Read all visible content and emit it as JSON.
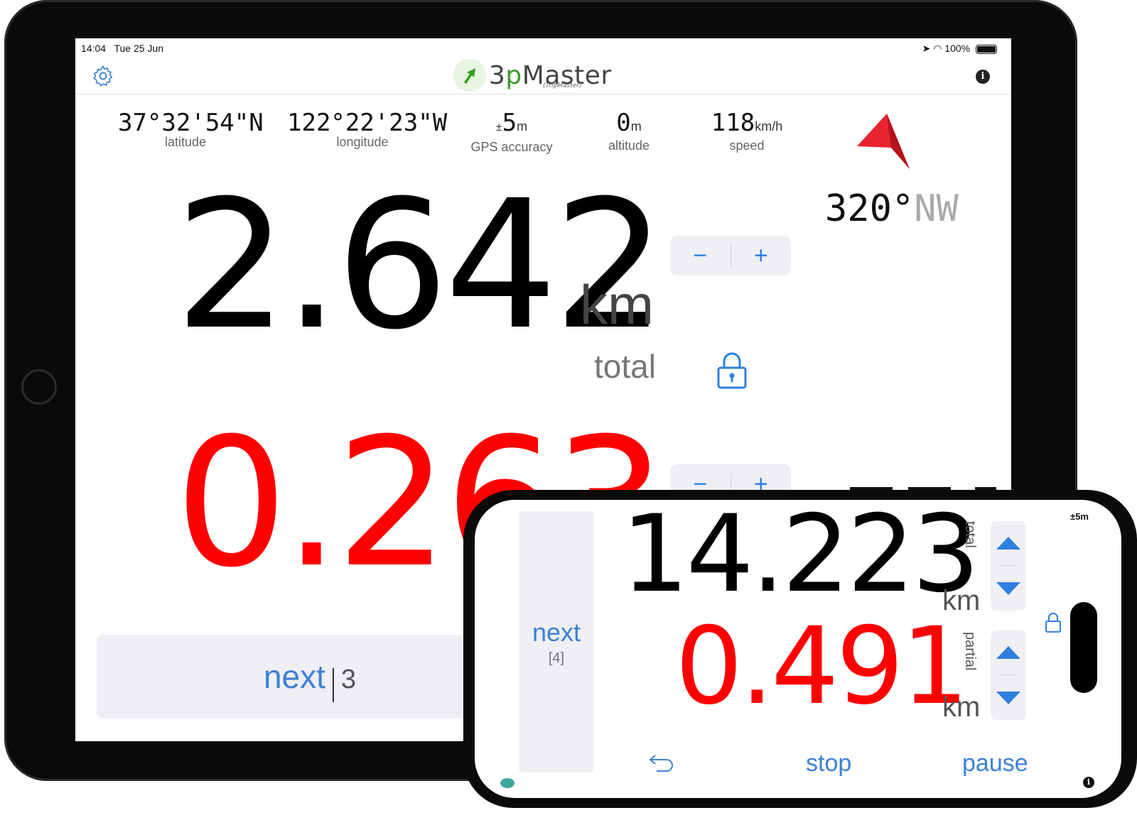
{
  "ipad": {
    "status": {
      "time": "14:04",
      "date": "Tue 25 Jun",
      "battery": "100%"
    },
    "app": {
      "name_prefix": "3",
      "name_p": "p",
      "name_suffix": "Master",
      "subtitle": "(TripMaster)"
    },
    "info_label": "i",
    "stats": {
      "latitude": {
        "value": "37°32'54\"N",
        "label": "latitude"
      },
      "longitude": {
        "value": "122°22'23\"W",
        "label": "longitude"
      },
      "gps": {
        "prefix": "±",
        "value": "5",
        "unit": "m",
        "label": "GPS accuracy"
      },
      "altitude": {
        "value": "0",
        "unit": "m",
        "label": "altitude"
      },
      "speed": {
        "value": "118",
        "unit": "km/h",
        "label": "speed"
      }
    },
    "heading": {
      "degrees": "320°",
      "direction": "NW"
    },
    "total": {
      "value": "2.642",
      "unit": "km",
      "label": "total"
    },
    "partial": {
      "value": "0.263"
    },
    "stepper": {
      "minus": "−",
      "plus": "+"
    },
    "next": {
      "label": "next",
      "count": "3"
    }
  },
  "iphone": {
    "gps": "±5m",
    "next": {
      "label": "next",
      "count": "[4]"
    },
    "total": {
      "value": "14.223",
      "unit": "km",
      "label": "total"
    },
    "partial": {
      "value": "0.491",
      "unit": "km",
      "label": "partial"
    },
    "actions": {
      "stop": "stop",
      "pause": "pause"
    },
    "info_label": "i"
  },
  "colors": {
    "accent": "#3b82d6",
    "partial": "#ff0000",
    "arrow": "#e8232f",
    "logo_green": "#3a9a2a"
  },
  "icons": [
    "gear-icon",
    "logo-arrow-icon",
    "info-icon",
    "heading-arrow-icon",
    "lock-icon",
    "undo-icon",
    "chevron-up-icon",
    "chevron-down-icon"
  ]
}
